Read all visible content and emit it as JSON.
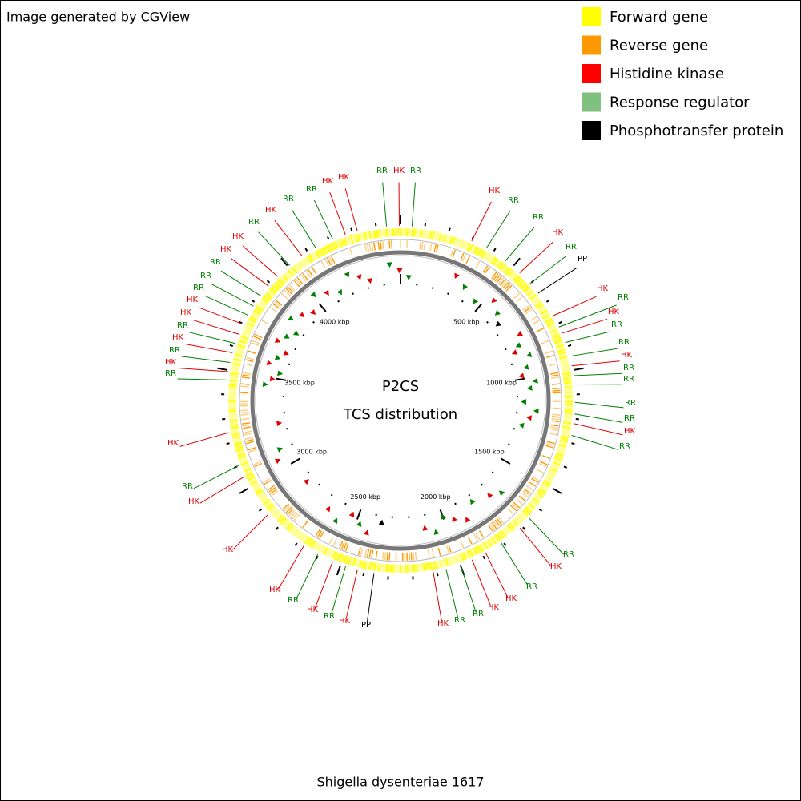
{
  "header": {
    "title": "Image generated by CGView"
  },
  "legend": [
    {
      "label": "Forward gene",
      "color": "#ffff00"
    },
    {
      "label": "Reverse gene",
      "color": "#ff9900"
    },
    {
      "label": "Histidine kinase",
      "color": "#ff0000"
    },
    {
      "label": "Response regulator",
      "color": "#80c080"
    },
    {
      "label": "Phosphotransfer protein",
      "color": "#000000"
    }
  ],
  "center": {
    "title": "P2CS",
    "subtitle": "TCS distribution"
  },
  "footer": {
    "organism": "Shigella dysenteriae 1617"
  },
  "scale_labels": [
    "500 kbp",
    "1000 kbp",
    "1500 kbp",
    "2000 kbp",
    "2500 kbp",
    "3000 kbp",
    "3500 kbp",
    "4000 kbp"
  ],
  "features": [
    {
      "label": "RR",
      "color": "#008000"
    },
    {
      "label": "HK",
      "color": "#e00000"
    },
    {
      "label": "RR",
      "color": "#008000"
    },
    {
      "label": "HK",
      "color": "#e00000"
    },
    {
      "label": "RR",
      "color": "#008000"
    },
    {
      "label": "RR",
      "color": "#008000"
    },
    {
      "label": "HK",
      "color": "#e00000"
    },
    {
      "label": "RR",
      "color": "#008000"
    },
    {
      "label": "PP",
      "color": "#000000"
    },
    {
      "label": "HK",
      "color": "#e00000"
    },
    {
      "label": "RR",
      "color": "#008000"
    },
    {
      "label": "HK",
      "color": "#e00000"
    },
    {
      "label": "RR",
      "color": "#008000"
    },
    {
      "label": "RR",
      "color": "#008000"
    },
    {
      "label": "HK",
      "color": "#e00000"
    },
    {
      "label": "RR",
      "color": "#008000"
    },
    {
      "label": "RR",
      "color": "#008000"
    },
    {
      "label": "RR",
      "color": "#008000"
    },
    {
      "label": "RR",
      "color": "#008000"
    },
    {
      "label": "HK",
      "color": "#e00000"
    },
    {
      "label": "RR",
      "color": "#008000"
    },
    {
      "label": "RR",
      "color": "#008000"
    },
    {
      "label": "HK",
      "color": "#e00000"
    },
    {
      "label": "RR",
      "color": "#008000"
    },
    {
      "label": "HK",
      "color": "#e00000"
    },
    {
      "label": "HK",
      "color": "#e00000"
    },
    {
      "label": "RR",
      "color": "#008000"
    },
    {
      "label": "RR",
      "color": "#008000"
    },
    {
      "label": "HK",
      "color": "#e00000"
    },
    {
      "label": "PP",
      "color": "#000000"
    },
    {
      "label": "HK",
      "color": "#e00000"
    },
    {
      "label": "RR",
      "color": "#008000"
    },
    {
      "label": "HK",
      "color": "#e00000"
    },
    {
      "label": "RR",
      "color": "#008000"
    },
    {
      "label": "HK",
      "color": "#e00000"
    },
    {
      "label": "HK",
      "color": "#e00000"
    },
    {
      "label": "HK",
      "color": "#e00000"
    },
    {
      "label": "RR",
      "color": "#008000"
    },
    {
      "label": "HK",
      "color": "#e00000"
    },
    {
      "label": "RR",
      "color": "#008000"
    },
    {
      "label": "HK",
      "color": "#e00000"
    },
    {
      "label": "RR",
      "color": "#008000"
    },
    {
      "label": "HK",
      "color": "#e00000"
    },
    {
      "label": "RR",
      "color": "#008000"
    },
    {
      "label": "HK",
      "color": "#e00000"
    },
    {
      "label": "HK",
      "color": "#e00000"
    },
    {
      "label": "RR",
      "color": "#008000"
    },
    {
      "label": "RR",
      "color": "#008000"
    },
    {
      "label": "RR",
      "color": "#008000"
    },
    {
      "label": "HK",
      "color": "#e00000"
    },
    {
      "label": "HK",
      "color": "#e00000"
    },
    {
      "label": "RR",
      "color": "#008000"
    },
    {
      "label": "HK",
      "color": "#e00000"
    },
    {
      "label": "RR",
      "color": "#008000"
    },
    {
      "label": "RR",
      "color": "#008000"
    },
    {
      "label": "HK",
      "color": "#e00000"
    },
    {
      "label": "HK",
      "color": "#e00000"
    }
  ]
}
